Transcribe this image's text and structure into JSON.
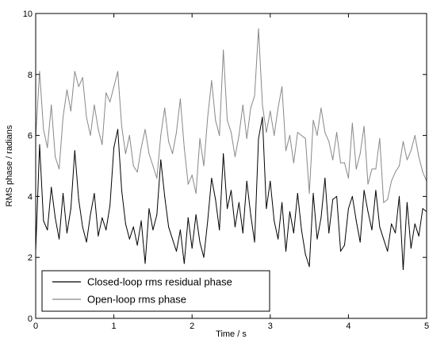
{
  "chart_data": {
    "type": "line",
    "title": "",
    "xlabel": "Time / s",
    "ylabel": "RMS phase / radians",
    "xlim": [
      0,
      5
    ],
    "ylim": [
      0,
      10
    ],
    "xticks": [
      0,
      1,
      2,
      3,
      4,
      5
    ],
    "yticks": [
      0,
      2,
      4,
      6,
      8,
      10
    ],
    "grid": false,
    "legend_position": "bottom-left",
    "series": [
      {
        "name": "Closed-loop rms residual phase",
        "color": "#000000",
        "x": [
          0,
          0.05,
          0.1,
          0.15,
          0.2,
          0.25,
          0.3,
          0.35,
          0.4,
          0.45,
          0.5,
          0.55,
          0.6,
          0.65,
          0.7,
          0.75,
          0.8,
          0.85,
          0.9,
          0.95,
          1.0,
          1.05,
          1.1,
          1.15,
          1.2,
          1.25,
          1.3,
          1.35,
          1.4,
          1.45,
          1.5,
          1.55,
          1.6,
          1.65,
          1.7,
          1.75,
          1.8,
          1.85,
          1.9,
          1.95,
          2.0,
          2.05,
          2.1,
          2.15,
          2.2,
          2.25,
          2.3,
          2.35,
          2.4,
          2.45,
          2.5,
          2.55,
          2.6,
          2.65,
          2.7,
          2.75,
          2.8,
          2.85,
          2.9,
          2.95,
          3.0,
          3.05,
          3.1,
          3.15,
          3.2,
          3.25,
          3.3,
          3.35,
          3.4,
          3.45,
          3.5,
          3.55,
          3.6,
          3.65,
          3.7,
          3.75,
          3.8,
          3.85,
          3.9,
          3.95,
          4.0,
          4.05,
          4.1,
          4.15,
          4.2,
          4.25,
          4.3,
          4.35,
          4.4,
          4.45,
          4.5,
          4.55,
          4.6,
          4.65,
          4.7,
          4.75,
          4.8,
          4.85,
          4.9,
          4.95,
          5.0
        ],
        "y": [
          2.2,
          5.7,
          3.2,
          2.9,
          4.3,
          3.3,
          2.6,
          4.1,
          2.8,
          3.6,
          5.5,
          3.9,
          3.0,
          2.5,
          3.4,
          4.1,
          2.7,
          3.3,
          2.9,
          3.7,
          5.6,
          6.2,
          4.2,
          3.1,
          2.6,
          3.0,
          2.4,
          3.2,
          1.8,
          3.6,
          2.9,
          3.4,
          5.2,
          4.0,
          3.0,
          2.6,
          2.2,
          2.9,
          1.8,
          3.3,
          2.3,
          3.4,
          2.5,
          2.0,
          3.2,
          4.6,
          3.9,
          2.9,
          5.4,
          3.6,
          4.2,
          3.0,
          3.8,
          2.8,
          4.5,
          3.4,
          2.5,
          5.9,
          6.6,
          3.6,
          4.5,
          3.2,
          2.6,
          3.8,
          2.2,
          3.5,
          2.8,
          4.1,
          2.9,
          2.1,
          1.7,
          4.1,
          2.6,
          3.3,
          4.6,
          2.8,
          3.9,
          4.0,
          2.2,
          2.4,
          3.6,
          4.0,
          3.2,
          2.5,
          4.2,
          3.5,
          2.9,
          4.2,
          3.0,
          2.6,
          2.2,
          3.1,
          2.8,
          4.0,
          1.6,
          3.8,
          2.3,
          3.1,
          2.7,
          3.6,
          3.5
        ]
      },
      {
        "name": "Open-loop rms phase",
        "color": "#888888",
        "x": [
          0,
          0.05,
          0.1,
          0.15,
          0.2,
          0.25,
          0.3,
          0.35,
          0.4,
          0.45,
          0.5,
          0.55,
          0.6,
          0.65,
          0.7,
          0.75,
          0.8,
          0.85,
          0.9,
          0.95,
          1.0,
          1.05,
          1.1,
          1.15,
          1.2,
          1.25,
          1.3,
          1.35,
          1.4,
          1.45,
          1.5,
          1.55,
          1.6,
          1.65,
          1.7,
          1.75,
          1.8,
          1.85,
          1.9,
          1.95,
          2.0,
          2.05,
          2.1,
          2.15,
          2.2,
          2.25,
          2.3,
          2.35,
          2.4,
          2.45,
          2.5,
          2.55,
          2.6,
          2.65,
          2.7,
          2.75,
          2.8,
          2.85,
          2.9,
          2.95,
          3.0,
          3.05,
          3.1,
          3.15,
          3.2,
          3.25,
          3.3,
          3.35,
          3.4,
          3.45,
          3.5,
          3.55,
          3.6,
          3.65,
          3.7,
          3.75,
          3.8,
          3.85,
          3.9,
          3.95,
          4.0,
          4.05,
          4.1,
          4.15,
          4.2,
          4.25,
          4.3,
          4.35,
          4.4,
          4.45,
          4.5,
          4.55,
          4.6,
          4.65,
          4.7,
          4.75,
          4.8,
          4.85,
          4.9,
          4.95,
          5.0
        ],
        "y": [
          5.9,
          8.1,
          6.2,
          5.6,
          7.0,
          5.3,
          4.9,
          6.6,
          7.5,
          6.8,
          8.1,
          7.6,
          7.9,
          6.6,
          6.0,
          7.0,
          6.2,
          5.7,
          7.4,
          7.1,
          7.6,
          8.1,
          6.3,
          5.4,
          6.0,
          5.0,
          4.8,
          5.6,
          6.2,
          5.4,
          5.0,
          4.6,
          6.0,
          6.9,
          5.8,
          5.4,
          6.1,
          7.2,
          5.6,
          4.4,
          4.7,
          4.1,
          5.9,
          5.0,
          6.6,
          7.8,
          6.5,
          6.0,
          8.8,
          6.5,
          6.1,
          5.3,
          6.0,
          7.0,
          5.9,
          6.9,
          7.3,
          9.5,
          7.0,
          6.1,
          6.8,
          6.0,
          6.9,
          7.6,
          5.5,
          6.0,
          5.1,
          6.1,
          6.0,
          5.9,
          4.1,
          6.5,
          6.0,
          6.9,
          6.1,
          5.8,
          5.2,
          6.1,
          5.1,
          5.1,
          4.6,
          6.4,
          4.9,
          5.4,
          6.3,
          4.4,
          4.9,
          4.9,
          5.9,
          3.8,
          3.9,
          4.5,
          4.8,
          5.0,
          5.8,
          5.2,
          5.5,
          6.0,
          5.3,
          4.8,
          4.5
        ]
      }
    ]
  }
}
